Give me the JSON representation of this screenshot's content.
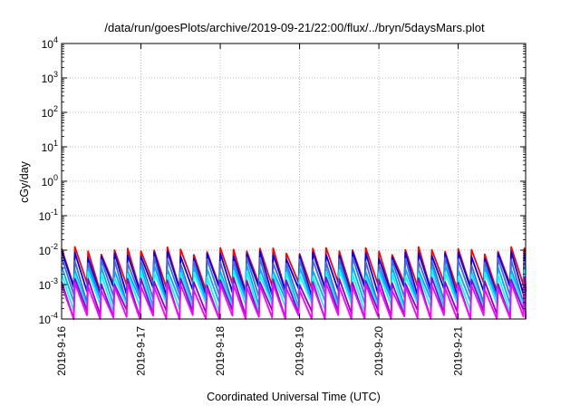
{
  "chart_data": {
    "type": "line",
    "title": "/data/run/goesPlots/archive/2019-09-21/22:00/flux/../bryn/5daysMars.plot",
    "xlabel": "Coordinated Universal Time (UTC)",
    "ylabel": "cGy/day",
    "x_ticks": [
      "2019-9-16",
      "2019-9-17",
      "2019-9-18",
      "2019-9-19",
      "2019-9-20",
      "2019-9-21"
    ],
    "xlim_days": [
      0,
      5.85
    ],
    "y_scale": "log",
    "ylim": [
      0.0001,
      10000
    ],
    "y_ticks": [
      {
        "base": "10",
        "exp": "-4"
      },
      {
        "base": "10",
        "exp": "-3"
      },
      {
        "base": "10",
        "exp": "-2"
      },
      {
        "base": "10",
        "exp": "-1"
      },
      {
        "base": "10",
        "exp": "0"
      },
      {
        "base": "10",
        "exp": "1"
      },
      {
        "base": "10",
        "exp": "2"
      },
      {
        "base": "10",
        "exp": "3"
      },
      {
        "base": "10",
        "exp": "4"
      }
    ],
    "grid": true,
    "sawtooth_period_days": 0.1667,
    "series": [
      {
        "color": "#ff0000",
        "peak": 0.01,
        "trough": 0.0009
      },
      {
        "color": "#0000ff",
        "peak": 0.0075,
        "trough": 0.00065
      },
      {
        "color": "#4169e1",
        "peak": 0.005,
        "trough": 0.0004
      },
      {
        "color": "#00aaff",
        "peak": 0.003,
        "trough": 0.0003
      },
      {
        "color": "#00ffff",
        "peak": 0.0021,
        "trough": 0.00022
      },
      {
        "color": "#9400d3",
        "peak": 0.0013,
        "trough": 0.00014
      },
      {
        "color": "#ff00ff",
        "peak": 0.0009,
        "trough": 0.0001
      }
    ]
  }
}
